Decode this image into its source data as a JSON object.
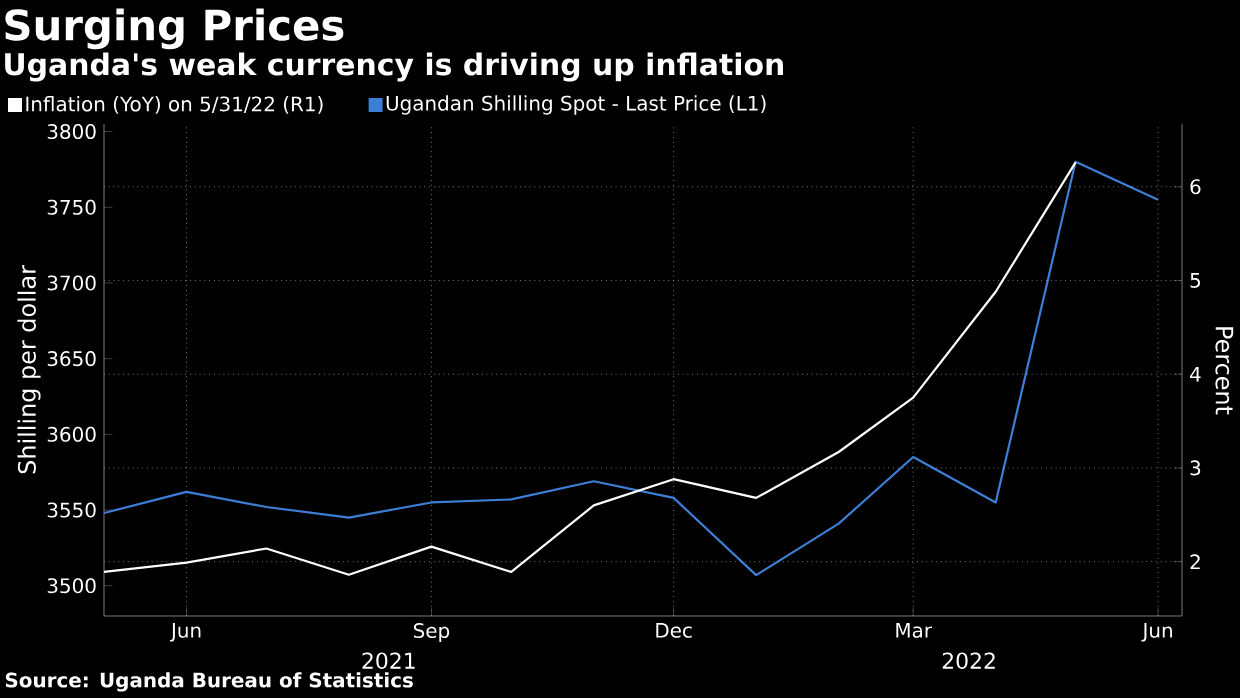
{
  "chart_data": {
    "type": "line",
    "title": "Surging Prices",
    "subtitle": "Uganda's weak currency is driving up inflation",
    "ylabel": "Shilling per dollar",
    "y2label": "Percent",
    "x": [
      "2021-05",
      "2021-06",
      "2021-07",
      "2021-08",
      "2021-09",
      "2021-10",
      "2021-11",
      "2021-12",
      "2022-01",
      "2022-02",
      "2022-03",
      "2022-04",
      "2022-05",
      "2022-06"
    ],
    "series": [
      {
        "name": "Inflation (YoY) on 5/31/22 (R1)",
        "color": "#ffffff",
        "axis": "y2",
        "values": [
          1.89,
          1.99,
          2.14,
          1.86,
          2.16,
          1.89,
          2.6,
          2.88,
          2.68,
          3.17,
          3.75,
          4.88,
          6.26,
          null
        ]
      },
      {
        "name": "Ugandan Shilling Spot - Last Price (L1)",
        "color": "#3d7fd6",
        "values": [
          3548,
          3562,
          3552,
          3545,
          3555,
          3557,
          3569,
          3558,
          3507,
          3541,
          3585,
          3555,
          3780,
          3755
        ]
      }
    ],
    "xlim": [
      "2021-05",
      "2022-06-10"
    ],
    "xticks": [
      {
        "value": "2021-06",
        "label": "Jun"
      },
      {
        "value": "2021-09",
        "label": "Sep"
      },
      {
        "value": "2021-12",
        "label": "Dec"
      },
      {
        "value": "2022-03",
        "label": "Mar"
      },
      {
        "value": "2022-06",
        "label": "Jun"
      }
    ],
    "ylim": [
      3480,
      3805
    ],
    "yticks": [
      3500,
      3550,
      3600,
      3650,
      3700,
      3750,
      3800
    ],
    "y2lim": [
      1.42,
      6.67
    ],
    "y2ticks": [
      2,
      3,
      4,
      5,
      6
    ],
    "grid": true,
    "legend": "top left",
    "annotations": [
      "2021",
      "2022",
      "Source: Uganda Bureau of Statistics"
    ]
  }
}
